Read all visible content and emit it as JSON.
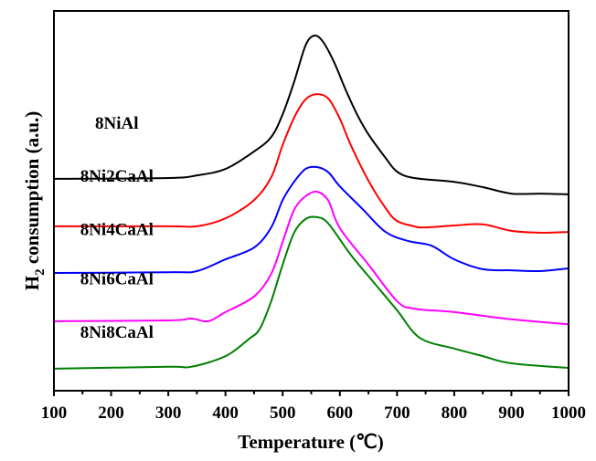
{
  "chart_data": {
    "type": "line",
    "title": "",
    "xlabel": "Temperature (℃)",
    "ylabel_main": "H",
    "ylabel_sub": "2",
    "ylabel_rest": " consumption (a.u.)",
    "xlim": [
      100,
      1000
    ],
    "ylim": [
      0,
      100
    ],
    "x_ticks": [
      100,
      200,
      300,
      400,
      500,
      600,
      700,
      800,
      900,
      1000
    ],
    "x_tick_labels": [
      "100",
      "200",
      "300",
      "400",
      "500",
      "600",
      "700",
      "800",
      "900",
      "1000"
    ],
    "x_minor_ticks": [
      150,
      250,
      350,
      450,
      550,
      650,
      750,
      850,
      950
    ],
    "y_ticks": [],
    "grid": false,
    "legend": "inline labels left of curves",
    "series": [
      {
        "name": "8NiAl",
        "color": "#000000",
        "x": [
          100,
          300,
          350,
          400,
          450,
          480,
          500,
          520,
          540,
          555,
          570,
          590,
          610,
          630,
          650,
          680,
          700,
          730,
          800,
          850,
          900,
          950,
          1000
        ],
        "y": [
          55.8,
          56.0,
          56.7,
          58.4,
          63.0,
          66.8,
          72.8,
          81.3,
          90.9,
          93.5,
          92.0,
          86.5,
          79.3,
          72.8,
          67.5,
          61.3,
          57.7,
          56.0,
          55.0,
          53.6,
          51.9,
          51.9,
          51.7
        ]
      },
      {
        "name": "8Ni2CaAl",
        "color": "#ff0000",
        "x": [
          100,
          300,
          350,
          400,
          450,
          480,
          500,
          520,
          540,
          560,
          580,
          600,
          620,
          650,
          680,
          700,
          730,
          750,
          800,
          850,
          900,
          950,
          1000
        ],
        "y": [
          43.3,
          43.3,
          43.3,
          45.4,
          50.2,
          56.2,
          64.7,
          71.9,
          76.7,
          78.1,
          76.9,
          71.6,
          64.4,
          55.3,
          48.1,
          44.7,
          43.3,
          43.0,
          43.5,
          43.8,
          42.1,
          41.6,
          41.8
        ]
      },
      {
        "name": "8Ni4CaAl",
        "color": "#0000ff",
        "x": [
          100,
          300,
          350,
          400,
          450,
          480,
          500,
          520,
          540,
          560,
          580,
          600,
          640,
          680,
          720,
          760,
          800,
          850,
          900,
          950,
          1000
        ],
        "y": [
          31.0,
          31.2,
          31.5,
          34.6,
          37.7,
          43.0,
          50.2,
          55.0,
          58.4,
          58.9,
          57.5,
          53.8,
          47.8,
          41.8,
          39.4,
          38.2,
          34.6,
          32.0,
          31.7,
          31.5,
          32.2
        ]
      },
      {
        "name": "8Ni6CaAl",
        "color": "#ff00ff",
        "x": [
          100,
          300,
          340,
          370,
          400,
          450,
          480,
          500,
          520,
          540,
          560,
          580,
          600,
          650,
          700,
          730,
          800,
          900,
          1000
        ],
        "y": [
          18.3,
          18.5,
          19.0,
          18.3,
          20.7,
          24.8,
          30.8,
          39.2,
          47.6,
          51.2,
          52.4,
          50.0,
          42.8,
          33.2,
          23.6,
          21.6,
          20.7,
          18.8,
          17.5
        ]
      },
      {
        "name": "8Ni8CaAl",
        "color": "#008000",
        "x": [
          100,
          300,
          340,
          400,
          440,
          460,
          480,
          500,
          520,
          540,
          560,
          580,
          620,
          660,
          700,
          740,
          800,
          850,
          900,
          1000
        ],
        "y": [
          5.8,
          6.3,
          6.3,
          9.1,
          13.5,
          16.3,
          23.6,
          33.2,
          41.6,
          45.2,
          45.7,
          44.0,
          35.6,
          28.4,
          21.2,
          13.9,
          11.1,
          9.1,
          7.2,
          6.0
        ]
      }
    ],
    "series_label_positions": [
      {
        "x": 210,
        "y": 69
      },
      {
        "x": 210,
        "y": 55
      },
      {
        "x": 210,
        "y": 41
      },
      {
        "x": 210,
        "y": 28
      },
      {
        "x": 210,
        "y": 14
      }
    ]
  }
}
